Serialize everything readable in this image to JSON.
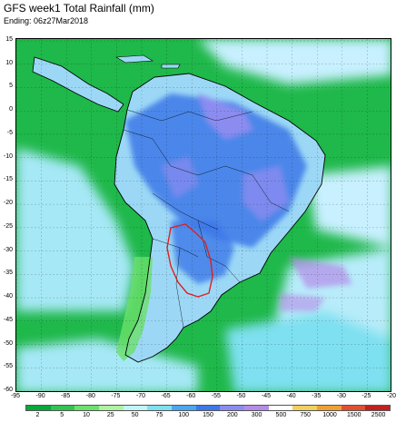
{
  "header": {
    "title": "GFS week1 Total Rainfall (mm)",
    "subtitle": "Ending: 06z27Mar2018"
  },
  "axes": {
    "lon_ticks": [
      "-95",
      "-90",
      "-85",
      "-80",
      "-75",
      "-70",
      "-65",
      "-60",
      "-55",
      "-50",
      "-45",
      "-40",
      "-35",
      "-30",
      "-25",
      "-20"
    ],
    "lat_ticks": [
      "15",
      "10",
      "5",
      "0",
      "-5",
      "-10",
      "-15",
      "-20",
      "-25",
      "-30",
      "-35",
      "-40",
      "-45",
      "-50",
      "-55",
      "-60"
    ]
  },
  "legend": {
    "labels": [
      "2",
      "5",
      "10",
      "25",
      "50",
      "75",
      "100",
      "150",
      "200",
      "300",
      "500",
      "750",
      "1000",
      "1500",
      "2500"
    ],
    "colors": [
      "#08a83c",
      "#31c451",
      "#6ce06c",
      "#aef2a2",
      "#c4f4fa",
      "#7ee0f0",
      "#4aa8f0",
      "#3c78e8",
      "#8c8cf0",
      "#b48ce8",
      "#ffffff",
      "#f0d060",
      "#f0a030",
      "#e05030",
      "#c02020"
    ]
  },
  "map_colors": {
    "ocean_base": "#1fb84a",
    "land_base": "#c8f0ff",
    "heavy": "#3a6ee0",
    "very_heavy": "#8c8cf0",
    "light": "#7ee0f0",
    "outline": "#e02020",
    "coast": "#000000"
  }
}
